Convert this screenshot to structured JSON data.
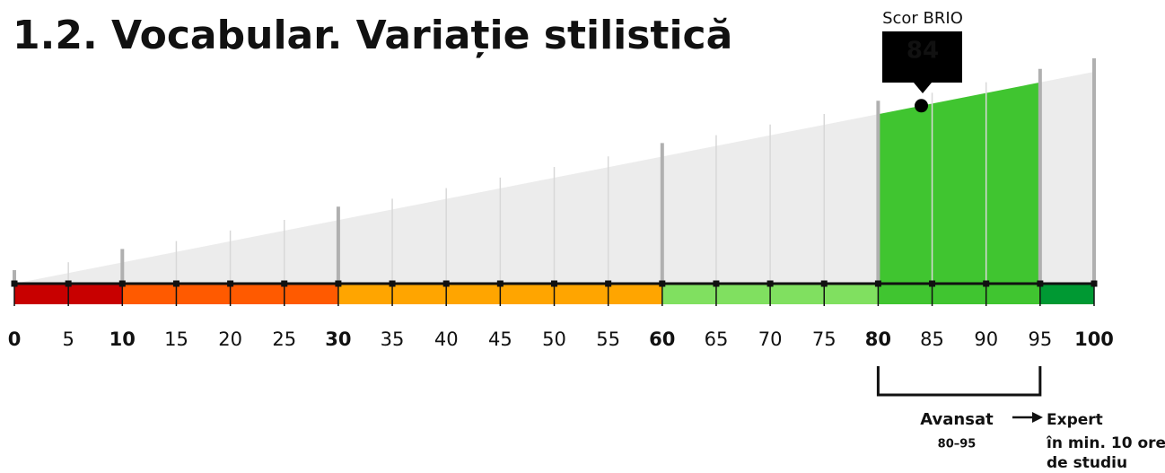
{
  "chart_data": {
    "type": "gauge",
    "title": "1.2. Vocabular. Variație stilistică",
    "score_label": "Scor BRIO",
    "score": 84,
    "xlim": [
      0,
      100
    ],
    "xticks": [
      0,
      5,
      10,
      15,
      20,
      25,
      30,
      35,
      40,
      45,
      50,
      55,
      60,
      65,
      70,
      75,
      80,
      85,
      90,
      95,
      100
    ],
    "bold_ticks": [
      0,
      10,
      30,
      60,
      80,
      100
    ],
    "bands": [
      {
        "from": 0,
        "to": 10,
        "color": "#c80000"
      },
      {
        "from": 10,
        "to": 30,
        "color": "#ff5a00"
      },
      {
        "from": 30,
        "to": 60,
        "color": "#ffa500"
      },
      {
        "from": 60,
        "to": 80,
        "color": "#80e060"
      },
      {
        "from": 80,
        "to": 95,
        "color": "#40c530"
      },
      {
        "from": 95,
        "to": 100,
        "color": "#009933"
      }
    ],
    "highlight": {
      "from": 80,
      "to": 95,
      "color": "#40c530",
      "label": "Avansat",
      "range_label": "80–95"
    },
    "next_level": {
      "label": "Expert",
      "note": [
        "în min. 10 ore",
        "de studiu"
      ]
    }
  }
}
